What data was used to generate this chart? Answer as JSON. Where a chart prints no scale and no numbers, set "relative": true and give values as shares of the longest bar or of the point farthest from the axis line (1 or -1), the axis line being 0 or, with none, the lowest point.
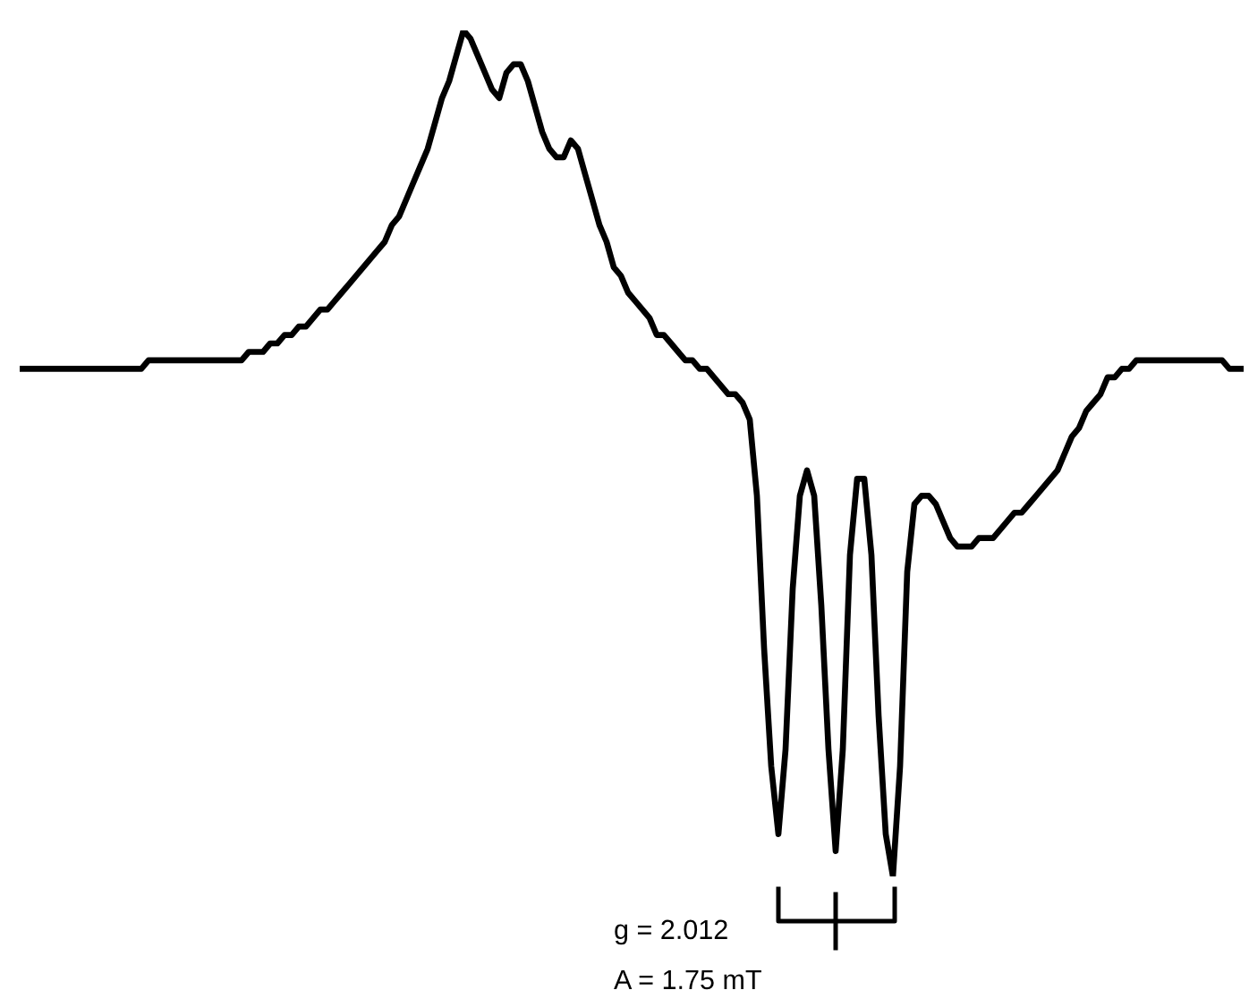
{
  "chart_data": {
    "type": "line",
    "relative": true,
    "categories": [
      null,
      null,
      null,
      null,
      null,
      null,
      null,
      null,
      null,
      null,
      null,
      null,
      null,
      null,
      null,
      null,
      null,
      null,
      null,
      null,
      null,
      null,
      null,
      null,
      null,
      null,
      null,
      null,
      null,
      null,
      null,
      null,
      null,
      null,
      null,
      null,
      null,
      null,
      null,
      null,
      null,
      null,
      null,
      null,
      null,
      null,
      null,
      null,
      null,
      null,
      null,
      null,
      null,
      null,
      null,
      null,
      null,
      null,
      null,
      null,
      null,
      null,
      null,
      null,
      null,
      null,
      null,
      null,
      null,
      null,
      null,
      null,
      null,
      null,
      null,
      null,
      null,
      null,
      null,
      null,
      null,
      null,
      null,
      null,
      null,
      null,
      null,
      null,
      null,
      null,
      null,
      null,
      null,
      null,
      null,
      null,
      null,
      null,
      null,
      null,
      null,
      null,
      null,
      null,
      null,
      null,
      null,
      null,
      null,
      null,
      null,
      null,
      null,
      null,
      null,
      null,
      null,
      null,
      null,
      null,
      null,
      null,
      null,
      null,
      null,
      null,
      null,
      null,
      null,
      null,
      null,
      null,
      null,
      null,
      null,
      null,
      null,
      null,
      null,
      null,
      null,
      null,
      null,
      null,
      null,
      null,
      null,
      null,
      null,
      null,
      null,
      null,
      null,
      null,
      null,
      null,
      null,
      null,
      null,
      null,
      null,
      null,
      null,
      null,
      null,
      null,
      null,
      null,
      null,
      null,
      null,
      null
    ],
    "series": [
      {
        "color": "#000000",
        "values": [
          0.6,
          0.6,
          0.6,
          0.6,
          0.6,
          0.6,
          0.6,
          0.6,
          0.6,
          0.6,
          0.6,
          0.6,
          0.6,
          0.6,
          0.6,
          0.6,
          0.6,
          0.6,
          0.61,
          0.61,
          0.61,
          0.61,
          0.61,
          0.61,
          0.61,
          0.61,
          0.61,
          0.61,
          0.61,
          0.61,
          0.61,
          0.61,
          0.62,
          0.62,
          0.62,
          0.63,
          0.63,
          0.64,
          0.64,
          0.65,
          0.65,
          0.66,
          0.67,
          0.67,
          0.68,
          0.69,
          0.7,
          0.71,
          0.72,
          0.73,
          0.74,
          0.75,
          0.77,
          0.78,
          0.8,
          0.82,
          0.84,
          0.86,
          0.89,
          0.92,
          0.94,
          0.97,
          1.0,
          0.99,
          0.97,
          0.95,
          0.93,
          0.92,
          0.95,
          0.96,
          0.96,
          0.94,
          0.91,
          0.88,
          0.86,
          0.85,
          0.85,
          0.87,
          0.86,
          0.83,
          0.8,
          0.77,
          0.75,
          0.72,
          0.71,
          0.69,
          0.68,
          0.67,
          0.66,
          0.64,
          0.64,
          0.63,
          0.62,
          0.61,
          0.61,
          0.6,
          0.6,
          0.59,
          0.58,
          0.57,
          0.57,
          0.56,
          0.54,
          0.45,
          0.27,
          0.13,
          0.05,
          0.15,
          0.34,
          0.45,
          0.48,
          0.45,
          0.32,
          0.15,
          0.03,
          0.15,
          0.38,
          0.47,
          0.47,
          0.38,
          0.19,
          0.05,
          0.0,
          0.13,
          0.36,
          0.44,
          0.45,
          0.45,
          0.44,
          0.42,
          0.4,
          0.39,
          0.39,
          0.39,
          0.4,
          0.4,
          0.4,
          0.41,
          0.42,
          0.43,
          0.43,
          0.44,
          0.45,
          0.46,
          0.47,
          0.48,
          0.5,
          0.52,
          0.53,
          0.55,
          0.56,
          0.57,
          0.59,
          0.59,
          0.6,
          0.6,
          0.61,
          0.61,
          0.61,
          0.61,
          0.61,
          0.61,
          0.61,
          0.61,
          0.61,
          0.61,
          0.61,
          0.61,
          0.61,
          0.6,
          0.6,
          0.6
        ]
      }
    ],
    "annotations": [
      "g = 2.012",
      "A = 1.75 mT"
    ]
  }
}
